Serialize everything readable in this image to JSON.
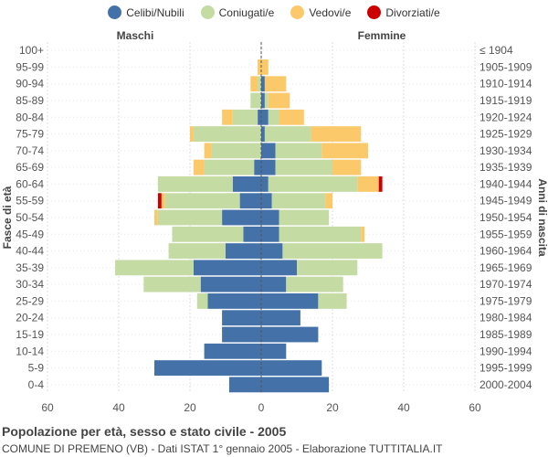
{
  "chart_data": {
    "type": "bar",
    "orientation": "horizontal-population-pyramid",
    "title": "Popolazione per età, sesso e stato civile - 2005",
    "subtitle": "COMUNE DI PREMENO (VB) - Dati ISTAT 1° gennaio 2005 - Elaborazione TUTTITALIA.IT",
    "left_header": "Maschi",
    "right_header": "Femmine",
    "ylabel_left": "Fasce di età",
    "ylabel_right": "Anni di nascita",
    "xlim": [
      -60,
      60
    ],
    "xticks": [
      -60,
      -40,
      -20,
      0,
      20,
      40,
      60
    ],
    "xtick_labels": [
      "60",
      "40",
      "20",
      "0",
      "20",
      "40",
      "60"
    ],
    "age_groups": [
      "100+",
      "95-99",
      "90-94",
      "85-89",
      "80-84",
      "75-79",
      "70-74",
      "65-69",
      "60-64",
      "55-59",
      "50-54",
      "45-49",
      "40-44",
      "35-39",
      "30-34",
      "25-29",
      "20-24",
      "15-19",
      "10-14",
      "5-9",
      "0-4"
    ],
    "birth_years": [
      "≤ 1904",
      "1905-1909",
      "1910-1914",
      "1915-1919",
      "1920-1924",
      "1925-1929",
      "1930-1934",
      "1935-1939",
      "1940-1944",
      "1945-1949",
      "1950-1954",
      "1955-1959",
      "1960-1964",
      "1965-1969",
      "1970-1974",
      "1975-1979",
      "1980-1984",
      "1985-1989",
      "1990-1994",
      "1995-1999",
      "2000-2004"
    ],
    "series": [
      {
        "name": "Celibi/Nubili",
        "color": "#4472a8",
        "male": [
          0,
          0,
          0,
          0,
          1,
          0,
          0,
          2,
          8,
          6,
          11,
          5,
          10,
          19,
          17,
          15,
          11,
          11,
          16,
          30,
          9
        ],
        "female": [
          0,
          0,
          1,
          1,
          2,
          1,
          4,
          4,
          2,
          3,
          5,
          5,
          6,
          10,
          7,
          16,
          11,
          16,
          7,
          17,
          19
        ]
      },
      {
        "name": "Coniugati/e",
        "color": "#c5dba4",
        "male": [
          0,
          0,
          1,
          3,
          7,
          19,
          14,
          14,
          21,
          21,
          18,
          20,
          16,
          22,
          16,
          3,
          0,
          0,
          0,
          0,
          0
        ],
        "female": [
          0,
          0,
          0,
          1,
          3,
          13,
          13,
          16,
          25,
          15,
          14,
          23,
          28,
          17,
          16,
          8,
          0,
          0,
          0,
          0,
          0
        ]
      },
      {
        "name": "Vedovi/e",
        "color": "#fbc96a",
        "male": [
          0,
          1,
          2,
          0,
          3,
          1,
          2,
          3,
          0,
          1,
          1,
          0,
          0,
          0,
          0,
          0,
          0,
          0,
          0,
          0,
          0
        ],
        "female": [
          0,
          2,
          6,
          6,
          7,
          14,
          13,
          8,
          6,
          2,
          0,
          1,
          0,
          0,
          0,
          0,
          0,
          0,
          0,
          0,
          0
        ]
      },
      {
        "name": "Divorziati/e",
        "color": "#cc0000",
        "male": [
          0,
          0,
          0,
          0,
          0,
          0,
          0,
          0,
          0,
          1,
          0,
          0,
          0,
          0,
          0,
          0,
          0,
          0,
          0,
          0,
          0
        ],
        "female": [
          0,
          0,
          0,
          0,
          0,
          0,
          0,
          0,
          1,
          0,
          0,
          0,
          0,
          0,
          0,
          0,
          0,
          0,
          0,
          0,
          0
        ]
      }
    ]
  }
}
